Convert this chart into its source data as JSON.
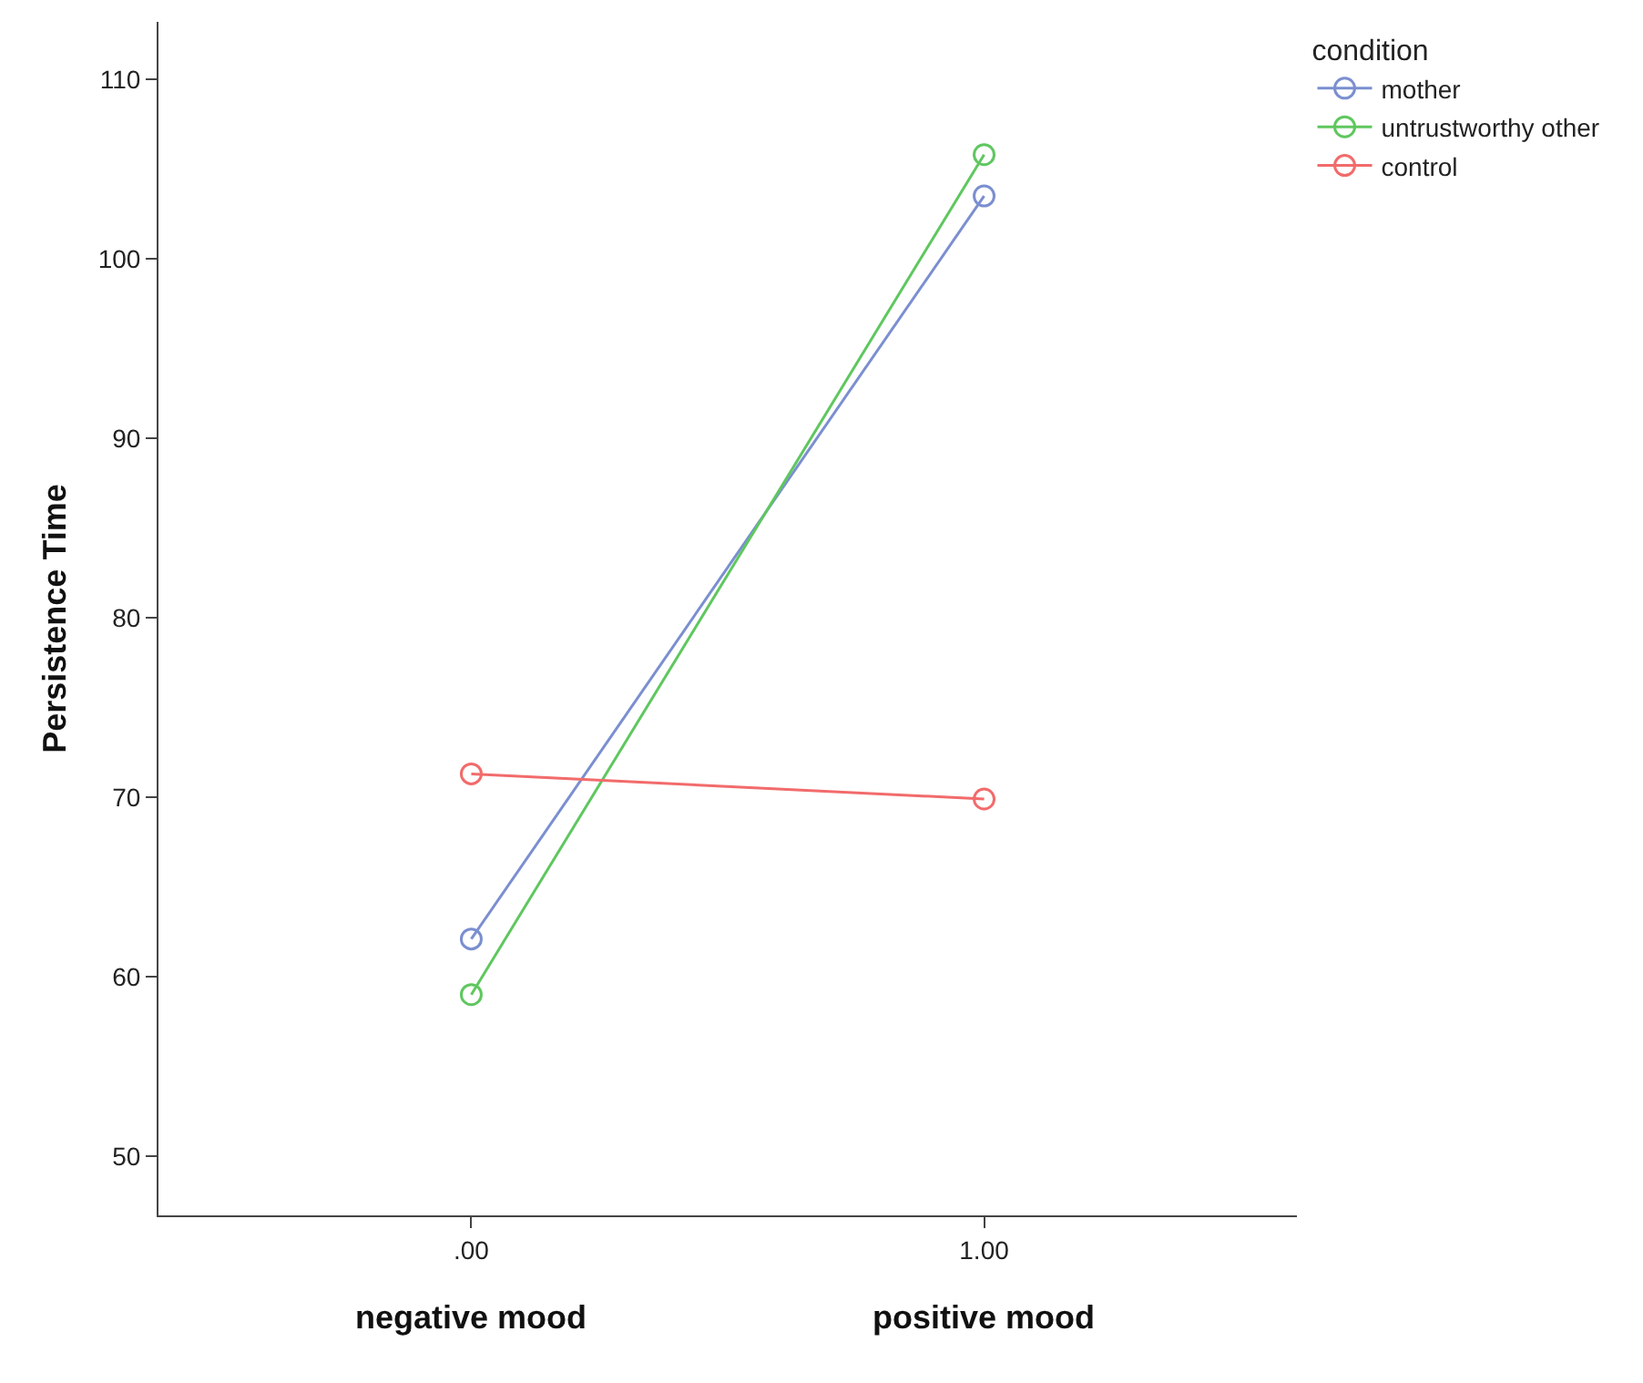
{
  "chart_data": {
    "type": "line",
    "ylabel": "Persistence Time",
    "legend_title": "condition",
    "x": [
      0,
      1
    ],
    "xlim": [
      -0.61,
      1.61
    ],
    "xticks": [
      {
        "value": 0,
        "label": ".00"
      },
      {
        "value": 1,
        "label": "1.00"
      }
    ],
    "ylim": [
      46.7,
      113.2
    ],
    "yticks": [
      50,
      60,
      70,
      80,
      90,
      100,
      110
    ],
    "series": [
      {
        "name": "mother",
        "color": "#7b8fd0",
        "values": [
          62.1,
          103.5
        ]
      },
      {
        "name": "untrustworthy other",
        "color": "#5fc75f",
        "values": [
          59.0,
          105.8
        ]
      },
      {
        "name": "control",
        "color": "#f26b6b",
        "values": [
          71.3,
          69.9
        ]
      }
    ],
    "annotations": [
      "negative mood",
      "positive mood"
    ],
    "marker": "circle",
    "grid": false,
    "legend": "top right"
  }
}
